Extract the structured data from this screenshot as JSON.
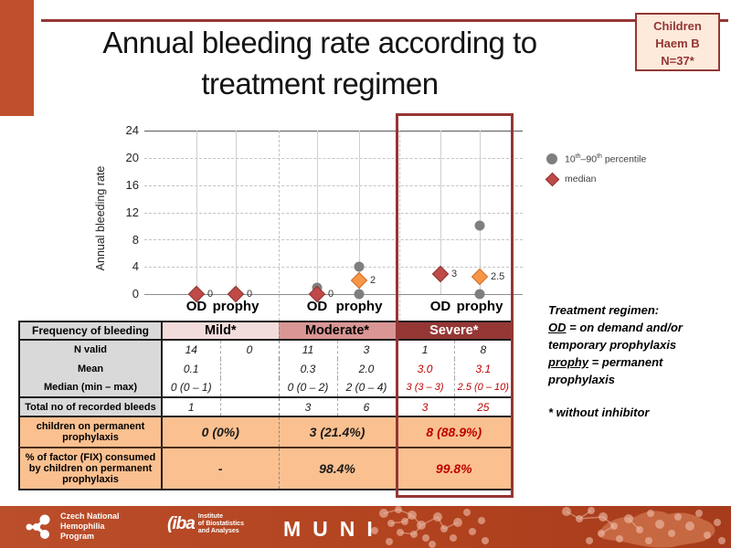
{
  "slide": {
    "title_line1": "Annual bleeding rate according to",
    "title_line2": "treatment regimen",
    "badge": {
      "line1": "Children",
      "line2": "Haem B",
      "line3": "N=37*"
    }
  },
  "chart_data": {
    "type": "scatter",
    "title": "Annual bleeding rate according to treatment regimen",
    "ylabel": "Annual bleeding rate",
    "ylim": [
      0,
      24
    ],
    "yticks": [
      0,
      4,
      8,
      12,
      16,
      20,
      24
    ],
    "grid": "horizontal-dashed",
    "legend_position": "right",
    "categories": [
      "Mild OD",
      "Mild prophy",
      "Moderate OD",
      "Moderate prophy",
      "Severe OD",
      "Severe prophy"
    ],
    "col_labels": [
      "OD",
      "prophy",
      "OD",
      "prophy",
      "OD",
      "prophy"
    ],
    "series": [
      {
        "name": "median",
        "marker": "diamond",
        "values": [
          0,
          0,
          0,
          2,
          3,
          2.5
        ],
        "labels": [
          "0",
          "0",
          "0",
          "2",
          "3",
          "2.5"
        ],
        "colors": [
          "red",
          "red",
          "red",
          "orange",
          "red",
          "orange"
        ]
      },
      {
        "name": "10th–90th percentile",
        "marker": "circle",
        "low": [
          0,
          0,
          0,
          0,
          3,
          0
        ],
        "high": [
          0,
          0,
          1,
          4,
          3,
          10
        ]
      }
    ]
  },
  "legend": {
    "pct_pre": "10",
    "pct_sup1": "th",
    "pct_mid": "–90",
    "pct_sup2": "th",
    "pct_post": " percentile",
    "median_label": "median"
  },
  "table": {
    "header_label": "Frequency of bleeding",
    "group_headers": [
      "Mild*",
      "Moderate*",
      "Severe*"
    ],
    "rows": [
      {
        "label": "N valid",
        "cells": [
          "14",
          "0",
          "11",
          "3",
          "1",
          "8"
        ]
      },
      {
        "label": "Mean",
        "cells": [
          "0.1",
          "",
          "0.3",
          "2.0",
          "3.0",
          "3.1"
        ]
      },
      {
        "label": "Median (min – max)",
        "cells": [
          "0 (0 – 1)",
          "",
          "0 (0 – 2)",
          "2 (0 – 4)",
          "3 (3 – 3)",
          "2.5 (0 – 10)"
        ]
      },
      {
        "label": "Total no of recorded bleeds",
        "cells": [
          "1",
          "",
          "3",
          "6",
          "3",
          "25"
        ]
      }
    ],
    "merged_rows": [
      {
        "label": "children on permanent prophylaxis",
        "cells": [
          "0 (0%)",
          "3 (21.4%)",
          "8 (88.9%)"
        ]
      },
      {
        "label": "% of factor (FIX) consumed by children on permanent prophylaxis",
        "cells": [
          "-",
          "98.4%",
          "99.8%"
        ]
      }
    ]
  },
  "notes": {
    "heading": "Treatment regimen:",
    "od_term": "OD",
    "od_def": " = on demand and/or temporary prophylaxis",
    "prophy_term": "prophy",
    "prophy_def": " = permanent prophylaxis",
    "footnote": "* without inhibitor"
  },
  "footer": {
    "org1_line1": "Czech National",
    "org1_line2": "Hemophilia",
    "org1_line3": "Program",
    "org2_abbr": "iba",
    "org2_line1": "Institute",
    "org2_line2": "of Biostatistics",
    "org2_line3": "and Analyses",
    "org3": "MUNI"
  },
  "colors": {
    "accent_rust": "#c0502d",
    "dark_red": "#943634",
    "median_red": "#bf4a47",
    "median_orange": "#f79646",
    "percentile_gray": "#7f7f7f",
    "mild_header_bg": "#f2dcdb",
    "moderate_header_bg": "#d99694",
    "severe_header_bg": "#953735",
    "highlight_rows_bg": "#fac090",
    "value_red": "#c00000"
  }
}
